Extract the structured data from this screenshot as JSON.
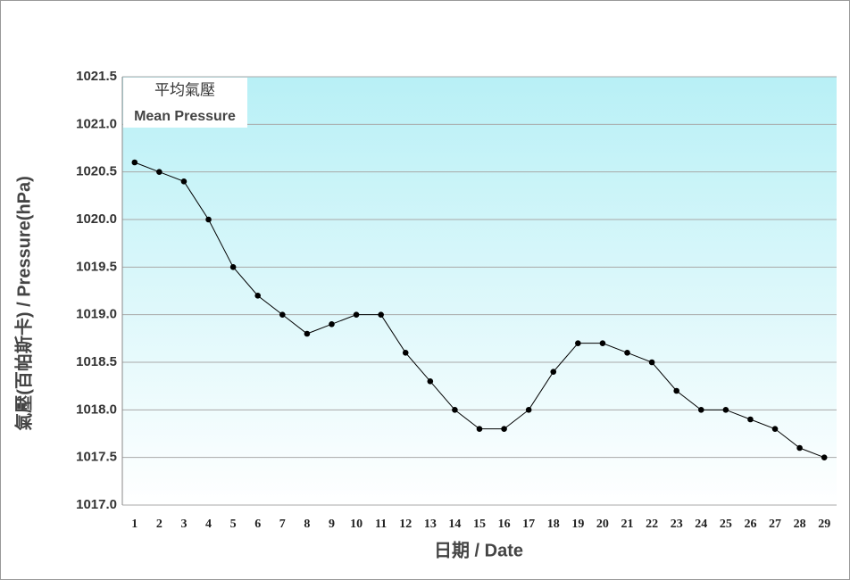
{
  "chart_data": {
    "type": "line",
    "title": "平均氣壓",
    "subtitle": "Mean Pressure",
    "x_label": "日期 / Date",
    "y_label": "氣壓(百帕斯卡) / Pressure(hPa)",
    "categories": [
      "1",
      "2",
      "3",
      "4",
      "5",
      "6",
      "7",
      "8",
      "9",
      "10",
      "11",
      "12",
      "13",
      "14",
      "15",
      "16",
      "17",
      "18",
      "19",
      "20",
      "21",
      "22",
      "23",
      "24",
      "25",
      "26",
      "27",
      "28",
      "29"
    ],
    "values": [
      1020.6,
      1020.5,
      1020.4,
      1020.0,
      1019.5,
      1019.2,
      1019.0,
      1018.8,
      1018.9,
      1019.0,
      1019.0,
      1018.6,
      1018.3,
      1018.0,
      1017.8,
      1017.8,
      1018.0,
      1018.4,
      1018.7,
      1018.7,
      1018.6,
      1018.5,
      1018.2,
      1018.0,
      1018.0,
      1017.9,
      1017.8,
      1017.6,
      1017.5
    ],
    "color": "#000000",
    "ylim": [
      1017.0,
      1021.5
    ],
    "yticks": [
      {
        "value": 1017,
        "label": "1017.0"
      },
      1017.5,
      {
        "value": 1018,
        "label": "1018.0"
      },
      1018.5,
      {
        "value": 1019,
        "label": "1019.0"
      },
      1019.5,
      {
        "value": 1020,
        "label": "1020.0"
      },
      1020.5,
      {
        "value": 1021,
        "label": "1021.0"
      },
      1021.5
    ],
    "grid": true
  }
}
